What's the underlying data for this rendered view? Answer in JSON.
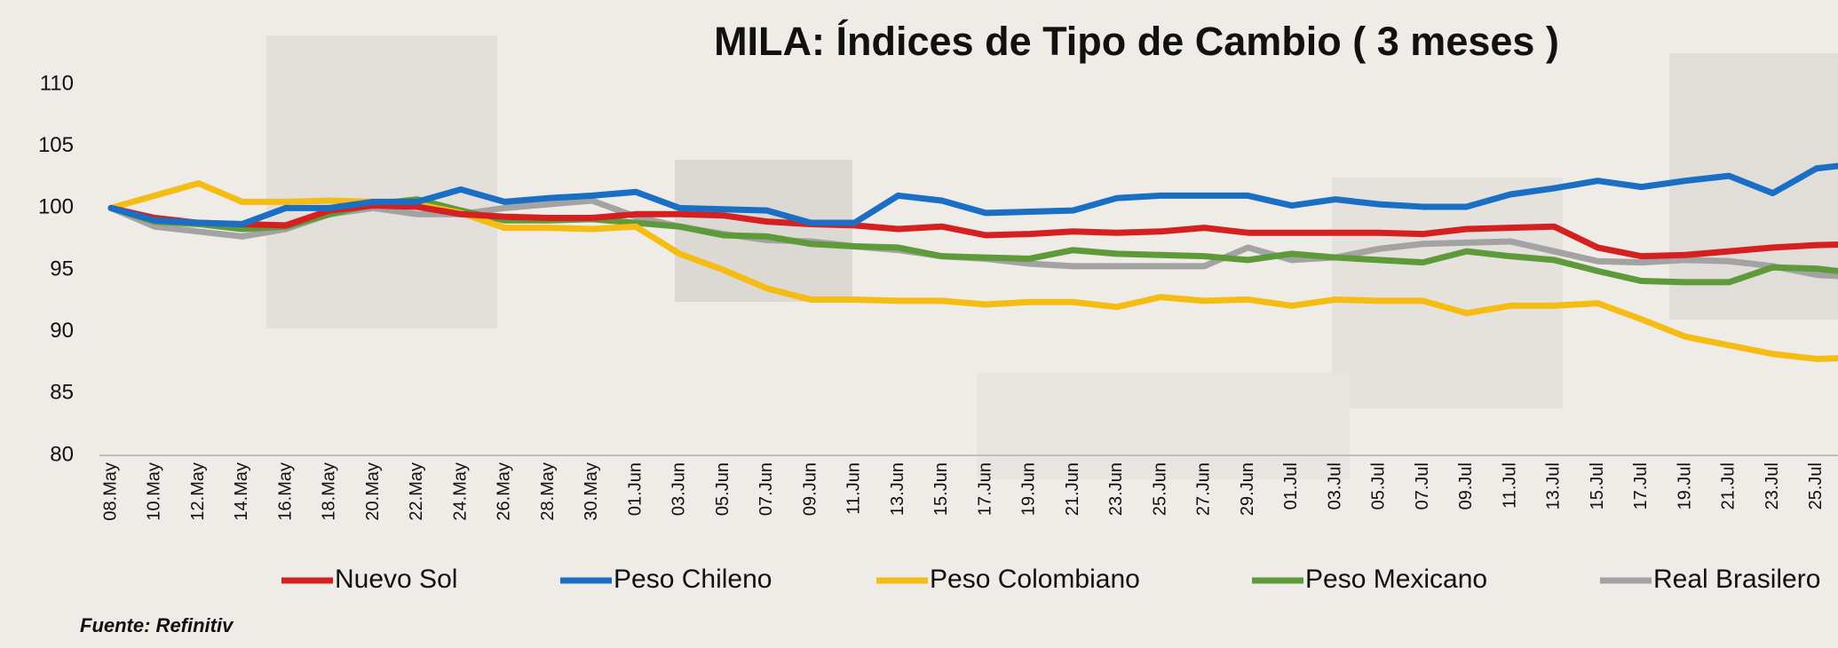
{
  "chart_data": {
    "type": "line",
    "title": "MILA: Índices de Tipo de Cambio ( 3 meses )",
    "source": "Fuente: Refinitiv",
    "categories": [
      "08.May",
      "10.May",
      "12.May",
      "14.May",
      "16.May",
      "18.May",
      "20.May",
      "22.May",
      "24.May",
      "26.May",
      "28.May",
      "30.May",
      "01.Jun",
      "03.Jun",
      "05.Jun",
      "07.Jun",
      "09.Jun",
      "11.Jun",
      "13.Jun",
      "15.Jun",
      "17.Jun",
      "19.Jun",
      "21.Jun",
      "23.Jun",
      "25.Jun",
      "27.Jun",
      "29.Jun",
      "01.Jul",
      "03.Jul",
      "05.Jul",
      "07.Jul",
      "09.Jul",
      "11.Jul",
      "13.Jul",
      "15.Jul",
      "17.Jul",
      "19.Jul",
      "21.Jul",
      "23.Jul",
      "25.Jul",
      null
    ],
    "series": [
      {
        "name": "Nuevo Sol",
        "color": "#d42020",
        "values": [
          100,
          99.2,
          98.8,
          98.7,
          98.6,
          99.8,
          100.2,
          100.1,
          99.5,
          99.3,
          99.2,
          99.2,
          99.5,
          99.5,
          99.4,
          98.9,
          98.7,
          98.6,
          98.3,
          98.5,
          97.8,
          97.9,
          98.1,
          98.0,
          98.1,
          98.4,
          98.0,
          98.0,
          98.0,
          98.0,
          97.9,
          98.3,
          98.4,
          98.5,
          96.8,
          96.1,
          96.2,
          96.5,
          96.8,
          97.0,
          97.1
        ]
      },
      {
        "name": "Peso Chileno",
        "color": "#1a6fc4",
        "values": [
          100,
          99,
          98.8,
          98.7,
          100,
          100,
          100.5,
          100.5,
          101.5,
          100.5,
          100.8,
          101,
          101.3,
          100,
          99.9,
          99.8,
          98.8,
          98.8,
          101,
          100.6,
          99.6,
          99.7,
          99.8,
          100.8,
          101,
          101,
          101,
          100.2,
          100.7,
          100.3,
          100.1,
          100.1,
          101.1,
          101.6,
          102.2,
          101.7,
          102.2,
          102.6,
          101.2,
          103.2,
          103.6
        ]
      },
      {
        "name": "Peso Colombiano",
        "color": "#f5bc14",
        "values": [
          100,
          101,
          102,
          100.5,
          100.5,
          100.6,
          100.5,
          100.3,
          99.6,
          98.4,
          98.4,
          98.3,
          98.5,
          96.3,
          95,
          93.5,
          92.6,
          92.6,
          92.5,
          92.5,
          92.2,
          92.4,
          92.4,
          92,
          92.8,
          92.5,
          92.6,
          92.1,
          92.6,
          92.5,
          92.5,
          91.5,
          92.1,
          92.1,
          92.3,
          91,
          89.6,
          88.9,
          88.2,
          87.8,
          87.9
        ]
      },
      {
        "name": "Peso Mexicano",
        "color": "#5e9a3a",
        "values": [
          100,
          98.9,
          98.7,
          98.3,
          98.5,
          99.5,
          100.3,
          100.7,
          99.8,
          99.0,
          99.0,
          99.1,
          98.8,
          98.5,
          97.8,
          97.7,
          97.1,
          96.9,
          96.8,
          96.1,
          96,
          95.9,
          96.6,
          96.3,
          96.2,
          96.1,
          95.8,
          96.3,
          96.0,
          95.8,
          95.6,
          96.5,
          96.1,
          95.8,
          94.9,
          94.1,
          94.0,
          94.0,
          95.2,
          95.1,
          94.7
        ]
      },
      {
        "name": "Real Brasilero",
        "color": "#a3a3a3",
        "values": [
          100,
          98.5,
          98.1,
          97.7,
          98.3,
          99.5,
          100,
          99.5,
          99.5,
          100,
          100.3,
          100.6,
          99.3,
          98.5,
          97.9,
          97.4,
          97.3,
          96.9,
          96.6,
          96.1,
          95.9,
          95.5,
          95.3,
          95.3,
          95.3,
          95.3,
          96.8,
          95.8,
          96,
          96.7,
          97.1,
          97.2,
          97.3,
          96.5,
          95.7,
          95.6,
          95.8,
          95.7,
          95.3,
          94.6,
          94.4
        ]
      }
    ],
    "ylim": [
      80,
      110
    ],
    "yticks": [
      80,
      85,
      90,
      95,
      100,
      105,
      110
    ],
    "grid": false,
    "legend": "bottom"
  }
}
